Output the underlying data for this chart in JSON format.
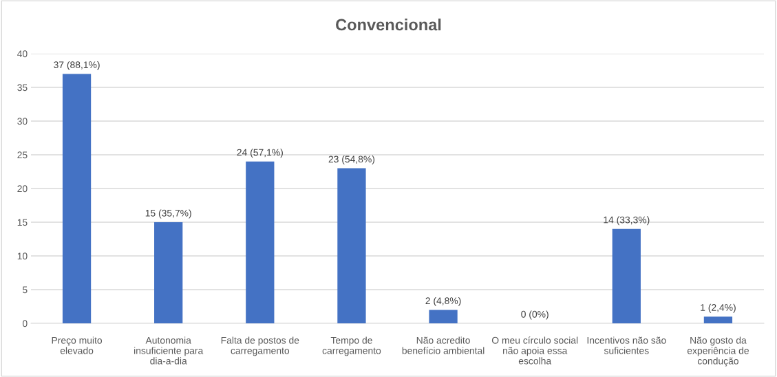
{
  "chart_data": {
    "type": "bar",
    "title": "Convencional",
    "categories": [
      "Preço muito\nelevado",
      "Autonomia\ninsuficiente para\ndia-a-dia",
      "Falta de postos de\ncarregamento",
      "Tempo de\ncarregamento",
      "Não acredito\nbenefício ambiental",
      "O meu círculo social\nnão apoia essa\nescolha",
      "Incentivos não são\nsuficientes",
      "Não gosto da\nexperiência de\ncondução"
    ],
    "values": [
      37,
      15,
      24,
      23,
      2,
      0,
      14,
      1
    ],
    "value_labels": [
      "37 (88,1%)",
      "15 (35,7%)",
      "24 (57,1%)",
      "23 (54,8%)",
      "2 (4,8%)",
      "0 (0%)",
      "14 (33,3%)",
      "1 (2,4%)"
    ],
    "color": "#4472c4",
    "ylim": [
      0,
      40
    ],
    "yticks": [
      0,
      5,
      10,
      15,
      20,
      25,
      30,
      35,
      40
    ],
    "grid": "y",
    "legend": false
  }
}
